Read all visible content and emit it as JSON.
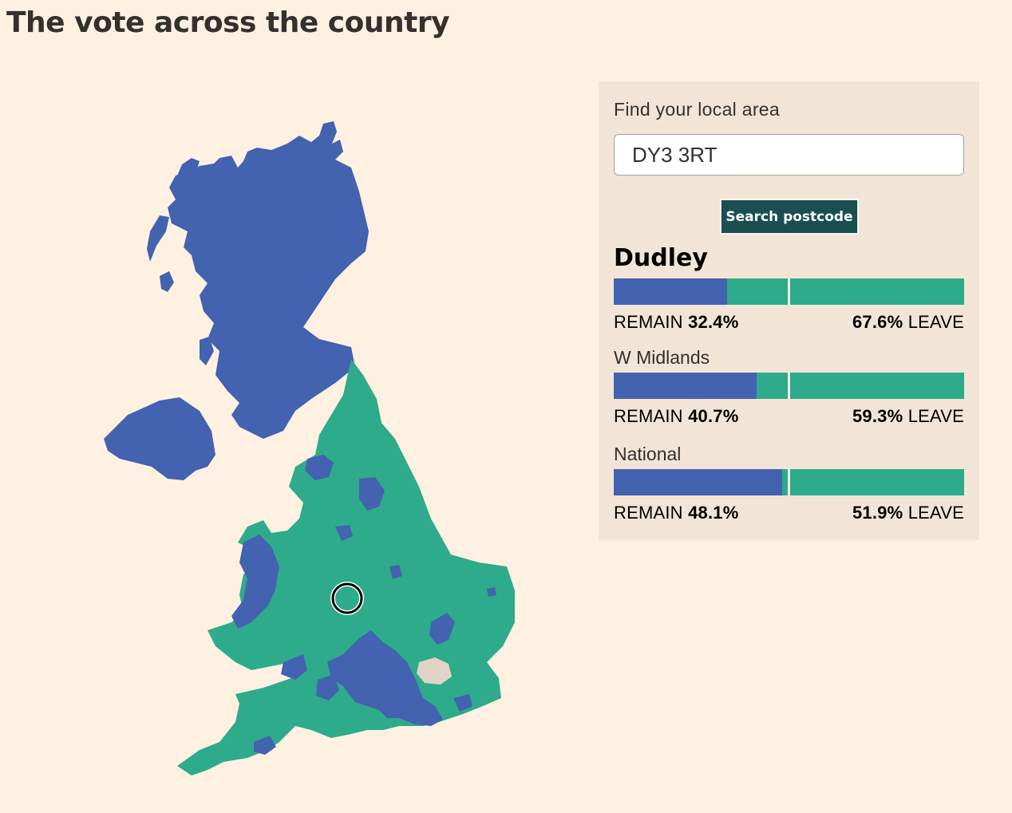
{
  "title": "The vote across the country",
  "colors": {
    "remain": "#4362b0",
    "leave": "#2eab8a",
    "no_data": "#e0d4c6",
    "background": "#fef1e2",
    "panel": "#f2e5d7",
    "button": "#1a4f52"
  },
  "map": {
    "regions": [
      {
        "name": "Scotland",
        "majority": "remain"
      },
      {
        "name": "Northern Ireland",
        "majority": "remain"
      },
      {
        "name": "England",
        "majority": "leave"
      },
      {
        "name": "Wales",
        "majority": "leave"
      }
    ],
    "marker_icon": "location-ring-icon"
  },
  "search": {
    "label": "Find your local area",
    "value": "DY3 3RT",
    "button_label": "Search postcode"
  },
  "results": [
    {
      "area": "Dudley",
      "remain_label": "REMAIN",
      "remain_pct": "32.4%",
      "leave_pct": "67.6%",
      "leave_label": "LEAVE",
      "remain_share": 32.4
    },
    {
      "area": "W Midlands",
      "remain_label": "REMAIN",
      "remain_pct": "40.7%",
      "leave_pct": "59.3%",
      "leave_label": "LEAVE",
      "remain_share": 40.7
    },
    {
      "area": "National",
      "remain_label": "REMAIN",
      "remain_pct": "48.1%",
      "leave_pct": "51.9%",
      "leave_label": "LEAVE",
      "remain_share": 48.1
    }
  ]
}
